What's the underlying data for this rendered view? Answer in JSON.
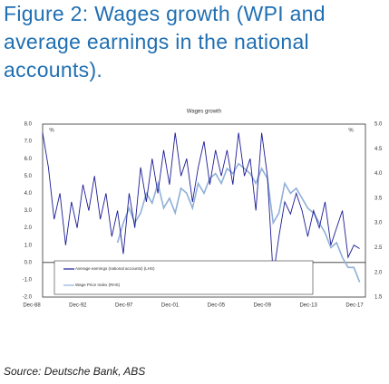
{
  "heading": "Figure 2: Wages growth (WPI and average earnings in the national accounts).",
  "source": "Source: Deutsche Bank, ABS",
  "chart_data": {
    "type": "line",
    "title": "Wages growth",
    "left_unit": "%",
    "right_unit": "%",
    "categories": [
      "Dec-88",
      null,
      null,
      null,
      null,
      null,
      null,
      null,
      "Dec-92",
      null,
      null,
      null,
      null,
      null,
      null,
      null,
      "Dec-97",
      null,
      null,
      null,
      null,
      null,
      null,
      null,
      "Dec-01",
      null,
      null,
      null,
      null,
      null,
      null,
      null,
      "Dec-05",
      null,
      null,
      null,
      null,
      null,
      null,
      null,
      "Dec-09",
      null,
      null,
      null,
      null,
      null,
      null,
      null,
      "Dec-13",
      null,
      null,
      null,
      null,
      null,
      null,
      null,
      "Dec-17"
    ],
    "ylim": [
      -2,
      8
    ],
    "yticks": [
      {
        "value": 8,
        "label": "8.0"
      },
      {
        "value": 7,
        "label": "7.0"
      },
      {
        "value": 6,
        "label": "6.0"
      },
      {
        "value": 5,
        "label": "5.0"
      },
      {
        "value": 4,
        "label": "4.0"
      },
      {
        "value": 3,
        "label": "3.0"
      },
      {
        "value": 2,
        "label": "2.0"
      },
      {
        "value": 1,
        "label": "1.0"
      },
      {
        "value": 0,
        "label": "0.0"
      },
      {
        "value": -1,
        "label": "-1.0"
      },
      {
        "value": -2,
        "label": "-2.0"
      }
    ],
    "y2lim": [
      1.5,
      5
    ],
    "y2ticks": [
      {
        "value": 5,
        "label": "5.0"
      },
      4.5,
      {
        "value": 4,
        "label": "4.0"
      },
      3.5,
      {
        "value": 3,
        "label": "3.0"
      },
      2.5,
      {
        "value": 2,
        "label": "2.0"
      },
      1.5
    ],
    "legend": "bottom-left",
    "series": [
      {
        "name": "Average earnings (national accounts) (LHS)",
        "color": "#1c1c96",
        "values": [
          7.5,
          5.5,
          2.5,
          4.0,
          1.0,
          3.5,
          2.0,
          4.5,
          3.0,
          5.0,
          2.5,
          4.0,
          1.5,
          3.0,
          0.5,
          4.0,
          2.0,
          5.5,
          3.5,
          6.0,
          4.0,
          6.5,
          4.5,
          7.5,
          5.0,
          6.0,
          3.5,
          5.5,
          7.0,
          4.5,
          6.5,
          5.0,
          6.5,
          4.5,
          7.5,
          5.0,
          6.0,
          3.0,
          7.5,
          5.0,
          -0.8,
          1.5,
          3.5,
          2.8,
          4.0,
          3.0,
          1.5,
          3.0,
          2.0,
          3.5,
          1.0,
          2.0,
          3.0,
          0.3,
          1.0,
          0.8,
          null
        ]
      },
      {
        "name": "Wage Price Index (RHS)",
        "color": "#8fb0d8",
        "axis": "y2",
        "values": [
          null,
          null,
          null,
          null,
          null,
          null,
          null,
          null,
          null,
          null,
          null,
          null,
          null,
          2.6,
          3.0,
          3.3,
          3.0,
          3.2,
          3.6,
          3.4,
          3.8,
          3.3,
          3.5,
          3.2,
          3.7,
          3.6,
          3.3,
          3.8,
          3.6,
          3.9,
          4.0,
          3.8,
          4.1,
          4.0,
          4.2,
          4.1,
          4.0,
          3.8,
          4.1,
          3.9,
          3.0,
          3.2,
          3.8,
          3.6,
          3.7,
          3.5,
          3.3,
          3.2,
          3.0,
          2.8,
          2.5,
          2.6,
          2.3,
          2.1,
          2.1,
          1.8,
          null
        ]
      }
    ]
  }
}
